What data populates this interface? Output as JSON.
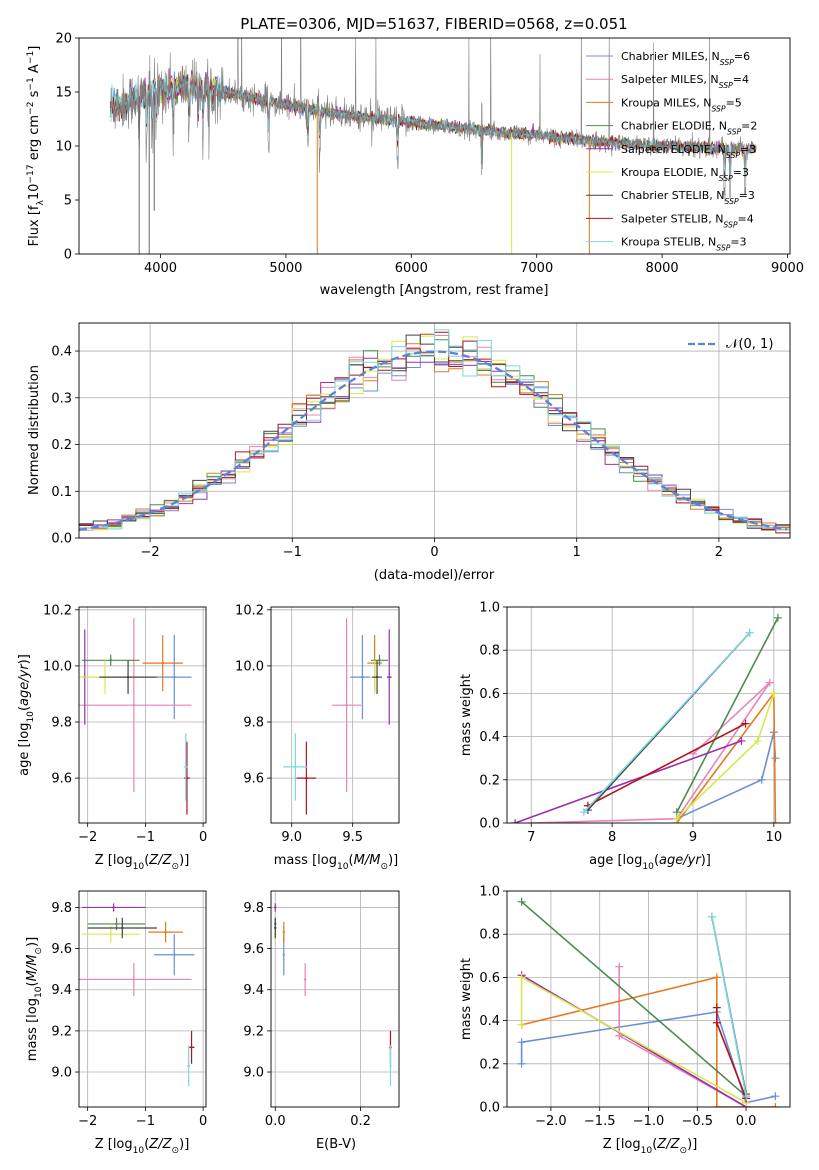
{
  "chart_data": [
    {
      "type": "line",
      "title": "PLATE=0306, MJD=51637, FIBERID=0568, z=0.051",
      "xlabel": "wavelength [Angstrom, rest frame]",
      "ylabel": "Flux [f_λ10^-17 erg cm^-2 s^-1 A^-1]",
      "xlim": [
        3350,
        9020
      ],
      "ylim": [
        0,
        20
      ],
      "xticks": [
        "4000",
        "5000",
        "6000",
        "7000",
        "8000",
        "9000"
      ],
      "yticks": [
        "0",
        "5",
        "10",
        "15",
        "20"
      ],
      "grid": false,
      "legend": "top-right",
      "wavelength_range": [
        3600,
        8750
      ],
      "continuum": [
        [
          3600,
          13.5
        ],
        [
          3800,
          14.5
        ],
        [
          4000,
          15.2
        ],
        [
          4300,
          15.6
        ],
        [
          4600,
          14.8
        ],
        [
          5000,
          13.8
        ],
        [
          5500,
          12.8
        ],
        [
          6000,
          12.2
        ],
        [
          6500,
          11.5
        ],
        [
          7000,
          11.0
        ],
        [
          7500,
          10.4
        ],
        [
          8000,
          10.0
        ],
        [
          8500,
          9.8
        ],
        [
          8750,
          9.7
        ]
      ],
      "series": [
        {
          "name": "Chabrier MILES, N",
          "sub": "SSP",
          "suffix": "=6",
          "color": "#6c8ed8"
        },
        {
          "name": "Salpeter MILES, N",
          "sub": "SSP",
          "suffix": "=4",
          "color": "#e884b8"
        },
        {
          "name": "Kroupa MILES, N",
          "sub": "SSP",
          "suffix": "=5",
          "color": "#e07b20"
        },
        {
          "name": "Chabrier ELODIE, N",
          "sub": "SSP",
          "suffix": "=2",
          "color": "#4c8a4c"
        },
        {
          "name": "Salpeter ELODIE, N",
          "sub": "SSP",
          "suffix": "=3",
          "color": "#9b30b0"
        },
        {
          "name": "Kroupa ELODIE, N",
          "sub": "SSP",
          "suffix": "=3",
          "color": "#d8e84c"
        },
        {
          "name": "Chabrier STELIB, N",
          "sub": "SSP",
          "suffix": "=3",
          "color": "#444444"
        },
        {
          "name": "Salpeter STELIB, N",
          "sub": "SSP",
          "suffix": "=4",
          "color": "#b0151e"
        },
        {
          "name": "Kroupa STELIB, N",
          "sub": "SSP",
          "suffix": "=3",
          "color": "#7cd8e0"
        }
      ]
    },
    {
      "type": "line",
      "title": "",
      "xlabel": "(data-model)/error",
      "ylabel": "Normed distribution",
      "xlim": [
        -2.5,
        2.5
      ],
      "ylim": [
        0,
        0.46
      ],
      "xticks": [
        "−2",
        "−1",
        "0",
        "1",
        "2"
      ],
      "yticks": [
        "0.0",
        "0.1",
        "0.2",
        "0.3",
        "0.4"
      ],
      "grid": true,
      "legend": "top-right",
      "legend_label": "𝒩(0, 1)",
      "histogram_bin_width": 0.1,
      "reference_curve": "normal(0,1)"
    },
    {
      "type": "scatter",
      "xlabel": "Z [log10(Z/Z☉)]",
      "ylabel": "age  [log10(age/yr)]",
      "xlim": [
        -2.15,
        0.05
      ],
      "ylim": [
        9.44,
        10.21
      ],
      "xticks": [
        "−2",
        "−1",
        "0"
      ],
      "yticks": [
        "9.6",
        "9.8",
        "10.0",
        "10.2"
      ],
      "grid": true,
      "points": [
        {
          "series": "Chabrier MILES",
          "x": -0.5,
          "y": 9.96,
          "xerr": 0.3,
          "yerr": 0.15
        },
        {
          "series": "Salpeter MILES",
          "x": -1.2,
          "y": 9.86,
          "xerr": 1.0,
          "yerr": 0.31
        },
        {
          "series": "Kroupa MILES",
          "x": -0.7,
          "y": 10.01,
          "xerr": 0.35,
          "yerr": 0.1
        },
        {
          "series": "Chabrier ELODIE",
          "x": -1.6,
          "y": 10.02,
          "xerr": 0.5,
          "yerr": 0.02
        },
        {
          "series": "Salpeter ELODIE",
          "x": -2.05,
          "y": 9.96,
          "xerr": 0.02,
          "yerr": 0.17
        },
        {
          "series": "Kroupa ELODIE",
          "x": -1.7,
          "y": 9.96,
          "xerr": 0.55,
          "yerr": 0.06
        },
        {
          "series": "Chabrier STELIB",
          "x": -1.3,
          "y": 9.96,
          "xerr": 0.5,
          "yerr": 0.06
        },
        {
          "series": "Salpeter STELIB",
          "x": -0.28,
          "y": 9.6,
          "xerr": 0.05,
          "yerr": 0.13
        },
        {
          "series": "Kroupa STELIB",
          "x": -0.3,
          "y": 9.64,
          "xerr": 0.03,
          "yerr": 0.12
        }
      ]
    },
    {
      "type": "scatter",
      "xlabel": "mass [log10(M/M☉)]",
      "ylabel": "",
      "xlim": [
        8.83,
        9.88
      ],
      "ylim": [
        9.44,
        10.21
      ],
      "xticks": [
        "9.0",
        "9.5"
      ],
      "yticks": [
        "9.6",
        "9.8",
        "10.0",
        "10.2"
      ],
      "grid": true,
      "points": [
        {
          "series": "Chabrier MILES",
          "x": 9.58,
          "y": 9.96,
          "xerr": 0.1,
          "yerr": 0.15
        },
        {
          "series": "Salpeter MILES",
          "x": 9.45,
          "y": 9.86,
          "xerr": 0.12,
          "yerr": 0.31
        },
        {
          "series": "Kroupa MILES",
          "x": 9.68,
          "y": 10.01,
          "xerr": 0.06,
          "yerr": 0.1
        },
        {
          "series": "Chabrier ELODIE",
          "x": 9.72,
          "y": 10.02,
          "xerr": 0.07,
          "yerr": 0.02
        },
        {
          "series": "Salpeter ELODIE",
          "x": 9.8,
          "y": 9.96,
          "xerr": 0.02,
          "yerr": 0.17
        },
        {
          "series": "Kroupa ELODIE",
          "x": 9.68,
          "y": 9.96,
          "xerr": 0.04,
          "yerr": 0.06
        },
        {
          "series": "Chabrier STELIB",
          "x": 9.7,
          "y": 9.96,
          "xerr": 0.04,
          "yerr": 0.06
        },
        {
          "series": "Salpeter STELIB",
          "x": 9.12,
          "y": 9.6,
          "xerr": 0.08,
          "yerr": 0.13
        },
        {
          "series": "Kroupa STELIB",
          "x": 9.03,
          "y": 9.64,
          "xerr": 0.1,
          "yerr": 0.12
        }
      ]
    },
    {
      "type": "line",
      "xlabel": "age  [log10(age/yr)]",
      "ylabel": "mass weight",
      "xlim": [
        6.7,
        10.2
      ],
      "ylim": [
        0,
        1.0
      ],
      "xticks": [
        "7",
        "8",
        "9",
        "10"
      ],
      "yticks": [
        "0.0",
        "0.2",
        "0.4",
        "0.6",
        "0.8",
        "1.0"
      ],
      "grid": true,
      "series": [
        {
          "name": "Chabrier MILES",
          "points": [
            [
              8.8,
              0.02
            ],
            [
              9.85,
              0.2
            ],
            [
              10.0,
              0.42
            ],
            [
              10.02,
              0.3
            ]
          ]
        },
        {
          "name": "Salpeter MILES",
          "points": [
            [
              7.0,
              0.0
            ],
            [
              8.8,
              0.02
            ],
            [
              9.95,
              0.65
            ],
            [
              9.0,
              0.32
            ]
          ]
        },
        {
          "name": "Kroupa MILES",
          "points": [
            [
              8.8,
              0.0
            ],
            [
              10.0,
              0.6
            ],
            [
              10.02,
              0.0
            ]
          ]
        },
        {
          "name": "Chabrier ELODIE",
          "points": [
            [
              8.8,
              0.05
            ],
            [
              10.05,
              0.95
            ]
          ]
        },
        {
          "name": "Salpeter ELODIE",
          "points": [
            [
              6.8,
              0.0
            ],
            [
              9.6,
              0.38
            ]
          ]
        },
        {
          "name": "Kroupa ELODIE",
          "points": [
            [
              8.8,
              0.02
            ],
            [
              9.8,
              0.38
            ],
            [
              10.0,
              0.6
            ]
          ]
        },
        {
          "name": "Chabrier STELIB",
          "points": [
            [
              7.7,
              0.06
            ],
            [
              9.7,
              0.88
            ]
          ]
        },
        {
          "name": "Salpeter STELIB",
          "points": [
            [
              7.7,
              0.08
            ],
            [
              9.65,
              0.46
            ]
          ]
        },
        {
          "name": "Kroupa STELIB",
          "points": [
            [
              7.65,
              0.05
            ],
            [
              9.7,
              0.88
            ]
          ]
        }
      ]
    },
    {
      "type": "scatter",
      "xlabel": "Z [log10(Z/Z☉)]",
      "ylabel": "mass [log10(M/M☉)]",
      "xlim": [
        -2.15,
        0.05
      ],
      "ylim": [
        8.83,
        9.88
      ],
      "xticks": [
        "−2",
        "−1",
        "0"
      ],
      "yticks": [
        "9.0",
        "9.2",
        "9.4",
        "9.6",
        "9.8"
      ],
      "grid": true,
      "points": [
        {
          "series": "Chabrier MILES",
          "x": -0.5,
          "y": 9.57,
          "xerr": 0.35,
          "yerr": 0.1
        },
        {
          "series": "Salpeter MILES",
          "x": -1.2,
          "y": 9.45,
          "xerr": 1.0,
          "yerr": 0.08
        },
        {
          "series": "Kroupa MILES",
          "x": -0.65,
          "y": 9.68,
          "xerr": 0.3,
          "yerr": 0.05
        },
        {
          "series": "Chabrier ELODIE",
          "x": -1.5,
          "y": 9.72,
          "xerr": 0.5,
          "yerr": 0.03
        },
        {
          "series": "Salpeter ELODIE",
          "x": -1.55,
          "y": 9.8,
          "xerr": 0.55,
          "yerr": 0.02
        },
        {
          "series": "Kroupa ELODIE",
          "x": -1.6,
          "y": 9.67,
          "xerr": 0.5,
          "yerr": 0.04
        },
        {
          "series": "Chabrier STELIB",
          "x": -1.4,
          "y": 9.7,
          "xerr": 0.6,
          "yerr": 0.05
        },
        {
          "series": "Salpeter STELIB",
          "x": -0.2,
          "y": 9.12,
          "xerr": 0.05,
          "yerr": 0.08
        },
        {
          "series": "Kroupa STELIB",
          "x": -0.25,
          "y": 9.03,
          "xerr": 0.03,
          "yerr": 0.1
        }
      ]
    },
    {
      "type": "scatter",
      "xlabel": "E(B-V)",
      "ylabel": "",
      "xlim": [
        -0.01,
        0.29
      ],
      "ylim": [
        8.83,
        9.88
      ],
      "xticks": [
        "0.0",
        "0.2"
      ],
      "yticks": [
        "9.0",
        "9.2",
        "9.4",
        "9.6",
        "9.8"
      ],
      "grid": true,
      "points": [
        {
          "series": "Chabrier MILES",
          "x": 0.02,
          "y": 9.57,
          "yerr": 0.1
        },
        {
          "series": "Salpeter MILES",
          "x": 0.07,
          "y": 9.45,
          "yerr": 0.08
        },
        {
          "series": "Kroupa MILES",
          "x": 0.02,
          "y": 9.68,
          "yerr": 0.05
        },
        {
          "series": "Chabrier ELODIE",
          "x": 0.0,
          "y": 9.72,
          "yerr": 0.03
        },
        {
          "series": "Salpeter ELODIE",
          "x": 0.0,
          "y": 9.8,
          "yerr": 0.02
        },
        {
          "series": "Kroupa ELODIE",
          "x": 0.0,
          "y": 9.67,
          "yerr": 0.04
        },
        {
          "series": "Chabrier STELIB",
          "x": 0.0,
          "y": 9.7,
          "yerr": 0.05
        },
        {
          "series": "Salpeter STELIB",
          "x": 0.27,
          "y": 9.12,
          "yerr": 0.08
        },
        {
          "series": "Kroupa STELIB",
          "x": 0.27,
          "y": 9.03,
          "yerr": 0.1
        }
      ]
    },
    {
      "type": "line",
      "xlabel": "Z [log10(Z/Z☉)]",
      "ylabel": "mass weight",
      "xlim": [
        -2.45,
        0.45
      ],
      "ylim": [
        0,
        1.0
      ],
      "xticks": [
        "−2.0",
        "−1.5",
        "−1.0",
        "−0.5",
        "0.0"
      ],
      "yticks": [
        "0.0",
        "0.2",
        "0.4",
        "0.6",
        "0.8",
        "1.0"
      ],
      "grid": true,
      "series": [
        {
          "name": "Chabrier MILES",
          "points": [
            [
              -2.3,
              0.2
            ],
            [
              -2.3,
              0.3
            ],
            [
              -0.3,
              0.44
            ],
            [
              0.0,
              0.02
            ],
            [
              0.3,
              0.05
            ]
          ]
        },
        {
          "name": "Salpeter MILES",
          "points": [
            [
              -1.3,
              0.65
            ],
            [
              -1.3,
              0.33
            ],
            [
              0.0,
              0.0
            ]
          ]
        },
        {
          "name": "Kroupa MILES",
          "points": [
            [
              -2.3,
              0.38
            ],
            [
              -0.3,
              0.6
            ],
            [
              -0.3,
              0.0
            ],
            [
              0.3,
              0.0
            ]
          ]
        },
        {
          "name": "Chabrier ELODIE",
          "points": [
            [
              -2.3,
              0.95
            ],
            [
              0.0,
              0.05
            ]
          ]
        },
        {
          "name": "Salpeter ELODIE",
          "points": [
            [
              -2.3,
              0.61
            ],
            [
              0.0,
              0.0
            ]
          ]
        },
        {
          "name": "Kroupa ELODIE",
          "points": [
            [
              -2.3,
              0.38
            ],
            [
              -2.3,
              0.6
            ],
            [
              0.0,
              0.02
            ]
          ]
        },
        {
          "name": "Chabrier STELIB",
          "points": [
            [
              -0.35,
              0.88
            ],
            [
              0.0,
              0.06
            ]
          ]
        },
        {
          "name": "Salpeter STELIB",
          "points": [
            [
              -0.3,
              0.46
            ],
            [
              -0.3,
              0.39
            ],
            [
              0.0,
              0.04
            ]
          ]
        },
        {
          "name": "Kroupa STELIB",
          "points": [
            [
              -0.35,
              0.88
            ],
            [
              0.0,
              0.05
            ]
          ]
        }
      ]
    }
  ]
}
